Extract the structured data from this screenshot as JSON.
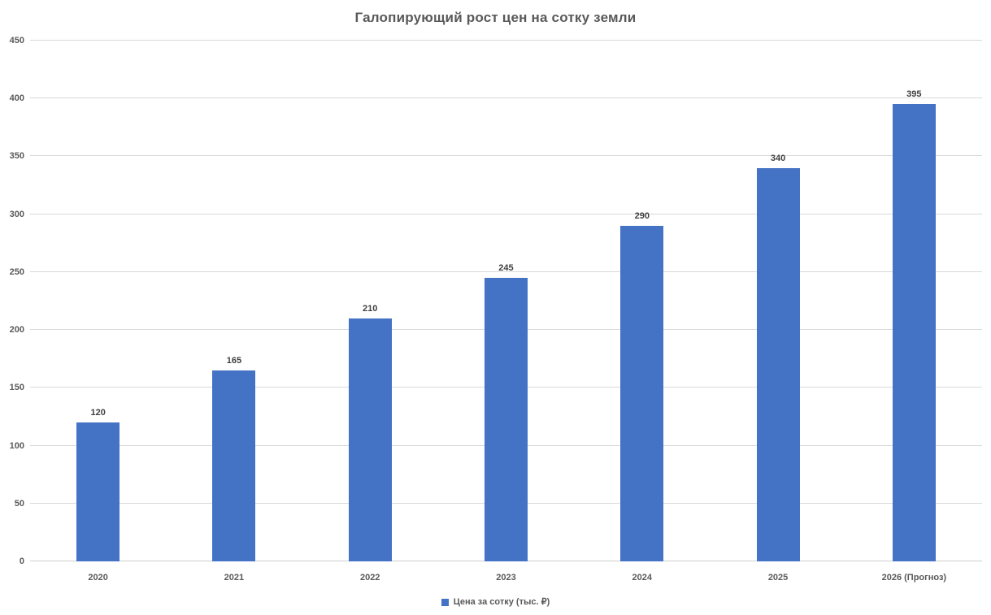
{
  "chart_data": {
    "type": "bar",
    "title": "Галопирующий рост цен на сотку земли",
    "categories": [
      "2020",
      "2021",
      "2022",
      "2023",
      "2024",
      "2025",
      "2026 (Прогноз)"
    ],
    "values": [
      120,
      165,
      210,
      245,
      290,
      340,
      395
    ],
    "series_name": "Цена за сотку (тыс. ₽)",
    "xlabel": "",
    "ylabel": "",
    "ylim": [
      0,
      450
    ],
    "yticks": [
      0,
      50,
      100,
      150,
      200,
      250,
      300,
      350,
      400,
      450
    ],
    "grid": true,
    "legend_position": "bottom",
    "data_labels": true,
    "colors": {
      "bar": "#4472C4",
      "title": "#595959",
      "axis_label": "#595959",
      "data_label": "#404040",
      "gridline": "#D9D9D9"
    }
  }
}
